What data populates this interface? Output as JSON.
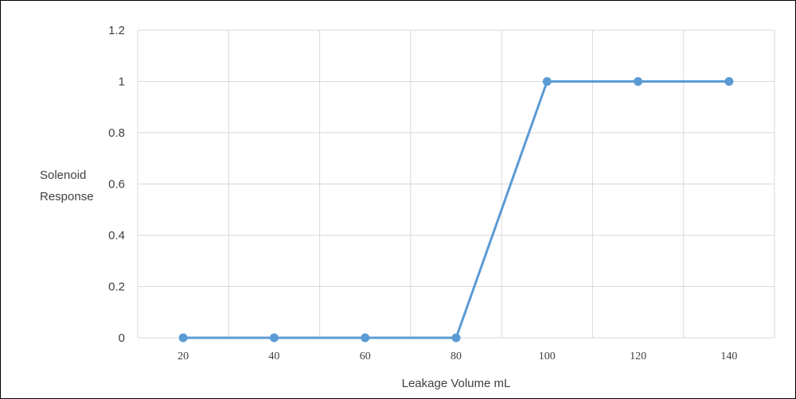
{
  "chart_data": {
    "type": "line",
    "title": "",
    "xlabel": "Leakage Volume mL",
    "ylabel_lines": [
      "Solenoid",
      "Response"
    ],
    "x": [
      20,
      40,
      60,
      80,
      100,
      120,
      140
    ],
    "x_tick_labels": [
      "20",
      "40",
      "60",
      "80",
      "100",
      "120",
      "140"
    ],
    "y_tick_labels": [
      "1.2",
      "1",
      "0.8",
      "0.6",
      "0.4",
      "0.2",
      "0"
    ],
    "y_ticks": [
      1.2,
      1,
      0.8,
      0.6,
      0.4,
      0.2,
      0
    ],
    "ylim": [
      0,
      1.2
    ],
    "series": [
      {
        "values": [
          0,
          0,
          0,
          0,
          1,
          1,
          1
        ],
        "color": "#5b9bd5"
      }
    ],
    "grid": true,
    "grid_color": "#d9d9d9",
    "legend": "none"
  }
}
